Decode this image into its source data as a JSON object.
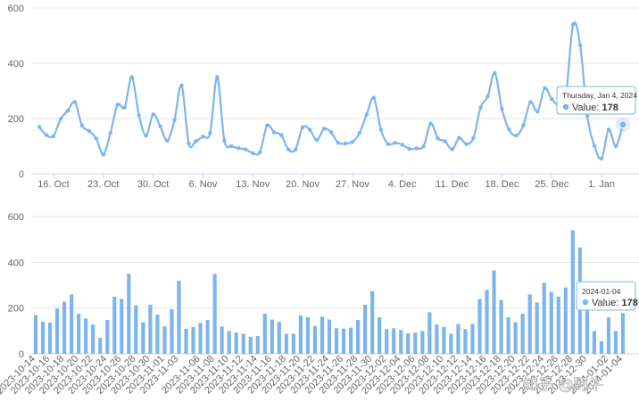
{
  "chart_data": [
    {
      "type": "line",
      "x_start": "2023-10-14",
      "values": [
        170,
        140,
        137,
        198,
        228,
        260,
        175,
        155,
        128,
        70,
        148,
        250,
        240,
        350,
        212,
        138,
        215,
        172,
        120,
        195,
        320,
        110,
        118,
        135,
        148,
        350,
        120,
        100,
        93,
        88,
        75,
        78,
        175,
        150,
        140,
        88,
        88,
        168,
        160,
        122,
        163,
        150,
        112,
        110,
        115,
        148,
        215,
        275,
        160,
        108,
        112,
        105,
        90,
        92,
        100,
        182,
        128,
        118,
        88,
        130,
        108,
        130,
        240,
        280,
        365,
        235,
        160,
        138,
        175,
        260,
        225,
        310,
        270,
        250,
        290,
        540,
        465,
        210,
        100,
        55,
        160,
        100,
        178
      ],
      "ylim": [
        0,
        600
      ],
      "yticks": [
        "0",
        "200",
        "400",
        "600"
      ],
      "xtick_labels": [
        "16. Oct",
        "23. Oct",
        "30. Oct",
        "6. Nov",
        "13. Nov",
        "20. Nov",
        "27. Nov",
        "4. Dec",
        "11. Dec",
        "18. Dec",
        "25. Dec",
        "1. Jan"
      ],
      "grid": true,
      "color": "#7cb5ec",
      "tooltip": {
        "header": "Thursday, Jan 4, 2024",
        "series_label": "Value",
        "value": "178"
      }
    },
    {
      "type": "bar",
      "x_start": "2023-10-14",
      "values": [
        170,
        140,
        137,
        198,
        228,
        260,
        175,
        155,
        128,
        70,
        148,
        250,
        240,
        350,
        212,
        138,
        215,
        172,
        120,
        195,
        320,
        110,
        118,
        135,
        148,
        350,
        120,
        100,
        93,
        88,
        75,
        78,
        175,
        150,
        140,
        88,
        88,
        168,
        160,
        122,
        163,
        150,
        112,
        110,
        115,
        148,
        215,
        275,
        160,
        108,
        112,
        105,
        90,
        92,
        100,
        182,
        128,
        118,
        88,
        130,
        108,
        130,
        240,
        280,
        365,
        235,
        160,
        138,
        175,
        260,
        225,
        310,
        270,
        250,
        290,
        540,
        465,
        210,
        100,
        55,
        160,
        100,
        178
      ],
      "ylim": [
        0,
        600
      ],
      "yticks": [
        "0",
        "200",
        "400",
        "600"
      ],
      "xtick_labels": [
        "2023-10-14",
        "2023-10-16",
        "2023-10-18",
        "2023-10-20",
        "2023-10-22",
        "2023-10-24",
        "2023-10-26",
        "2023-10-28",
        "2023-10-30",
        "2023-11-01",
        "2023-11-03",
        "2023-11-06",
        "2023-11-08",
        "2023-11-10",
        "2023-11-12",
        "2023-11-14",
        "2023-11-16",
        "2023-11-18",
        "2023-11-20",
        "2023-11-22",
        "2023-11-24",
        "2023-11-26",
        "2023-11-28",
        "2023-11-30",
        "2023-12-02",
        "2023-12-04",
        "2023-12-06",
        "2023-12-08",
        "2023-12-10",
        "2023-12-12",
        "2023-12-14",
        "2023-12-16",
        "2023-12-18",
        "2023-12-20",
        "2023-12-22",
        "2023-12-24",
        "2023-12-26",
        "2023-12-28",
        "2023-12-30",
        "2024-01-02",
        "2024-01-04"
      ],
      "grid": true,
      "color": "#7cb5ec",
      "tooltip": {
        "header": "2024-01-04",
        "series_label": "Value",
        "value": "178"
      }
    }
  ],
  "watermark": "知乎 @阿牛"
}
